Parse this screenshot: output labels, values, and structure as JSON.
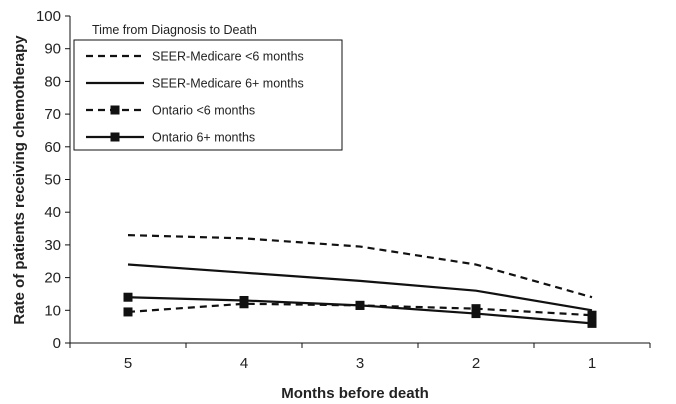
{
  "chart_data": {
    "type": "line",
    "title": "",
    "xlabel": "Months before death",
    "ylabel": "Rate of patients receiving chemotherapy",
    "categories": [
      "5",
      "4",
      "3",
      "2",
      "1"
    ],
    "ylim": [
      0,
      100
    ],
    "yticks": [
      0,
      10,
      20,
      30,
      40,
      50,
      60,
      70,
      80,
      90,
      100
    ],
    "grid": false,
    "legend": {
      "title": "Time from  Diagnosis to Death",
      "placement": "top-left"
    },
    "series": [
      {
        "name": "SEER-Medicare <6 months",
        "values": [
          33,
          32,
          29.5,
          24,
          14
        ],
        "dash": true,
        "marker": false,
        "color": "#111111"
      },
      {
        "name": "SEER-Medicare 6+ months",
        "values": [
          24,
          21.5,
          19,
          16,
          10
        ],
        "dash": false,
        "marker": false,
        "color": "#111111"
      },
      {
        "name": "Ontario <6 months",
        "values": [
          9.5,
          12,
          11.5,
          10.5,
          8.5
        ],
        "dash": true,
        "marker": true,
        "color": "#111111"
      },
      {
        "name": "Ontario 6+ months",
        "values": [
          14,
          13,
          11.5,
          9,
          6
        ],
        "dash": false,
        "marker": true,
        "color": "#111111"
      }
    ]
  }
}
